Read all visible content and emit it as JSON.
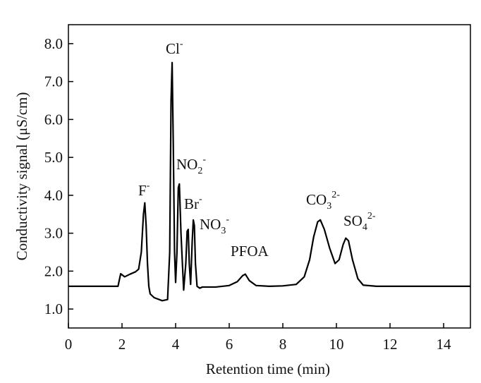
{
  "chart_data": {
    "type": "line",
    "x_label": "Retention time (min)",
    "y_label": "Conductivity signal (μS/cm)",
    "xlim": [
      0,
      15
    ],
    "xticks": [
      0,
      2,
      4,
      6,
      8,
      10,
      12,
      14
    ],
    "ylim": [
      0.5,
      8.5
    ],
    "yticks": [
      {
        "value": 1,
        "label": "1.0"
      },
      {
        "value": 2,
        "label": "2.0"
      },
      {
        "value": 3,
        "label": "3.0"
      },
      {
        "value": 4,
        "label": "4.0"
      },
      {
        "value": 5,
        "label": "5.0"
      },
      {
        "value": 6,
        "label": "6.0"
      },
      {
        "value": 7,
        "label": "7.0"
      },
      {
        "value": 8,
        "label": "8.0"
      }
    ],
    "series": [
      {
        "color": "#000000",
        "x": [
          0,
          1.85,
          1.95,
          2.1,
          2.3,
          2.5,
          2.62,
          2.72,
          2.8,
          2.85,
          2.9,
          2.95,
          3.0,
          3.05,
          3.2,
          3.5,
          3.7,
          3.78,
          3.83,
          3.87,
          3.91,
          3.96,
          4.0,
          4.05,
          4.1,
          4.14,
          4.2,
          4.3,
          4.38,
          4.43,
          4.47,
          4.51,
          4.56,
          4.62,
          4.66,
          4.7,
          4.74,
          4.8,
          4.9,
          5.0,
          5.5,
          6.0,
          6.3,
          6.5,
          6.6,
          6.75,
          7.0,
          7.5,
          8.0,
          8.5,
          8.8,
          9.0,
          9.15,
          9.3,
          9.4,
          9.55,
          9.75,
          9.95,
          10.1,
          10.25,
          10.35,
          10.45,
          10.6,
          10.8,
          11.0,
          11.5,
          12,
          13,
          15
        ],
        "values": [
          1.6,
          1.6,
          1.93,
          1.85,
          1.92,
          1.98,
          2.05,
          2.5,
          3.5,
          3.8,
          3.2,
          2.2,
          1.6,
          1.4,
          1.3,
          1.22,
          1.25,
          2.5,
          6.5,
          7.5,
          5.5,
          2.5,
          1.7,
          2.5,
          4.2,
          4.3,
          3.0,
          1.5,
          2.2,
          3.05,
          3.1,
          2.2,
          1.65,
          2.8,
          3.35,
          3.2,
          2.2,
          1.6,
          1.55,
          1.58,
          1.58,
          1.62,
          1.72,
          1.88,
          1.92,
          1.75,
          1.62,
          1.6,
          1.61,
          1.65,
          1.85,
          2.3,
          2.9,
          3.3,
          3.35,
          3.1,
          2.6,
          2.2,
          2.3,
          2.7,
          2.87,
          2.8,
          2.3,
          1.8,
          1.63,
          1.6,
          1.6,
          1.6,
          1.6
        ]
      }
    ],
    "annotations": [
      {
        "text": "F",
        "sup": "-"
      },
      {
        "text": "Cl",
        "sup": "-"
      },
      {
        "text": "NO",
        "sub": "2",
        "sup": "-"
      },
      {
        "text": "Br",
        "sup": "-"
      },
      {
        "text": "NO",
        "sub": "3",
        "sup": "-"
      },
      {
        "text": "PFOA"
      },
      {
        "text": "CO",
        "sub": "3",
        "sup": "2-"
      },
      {
        "text": "SO",
        "sub": "4",
        "sup": "2-"
      }
    ]
  }
}
